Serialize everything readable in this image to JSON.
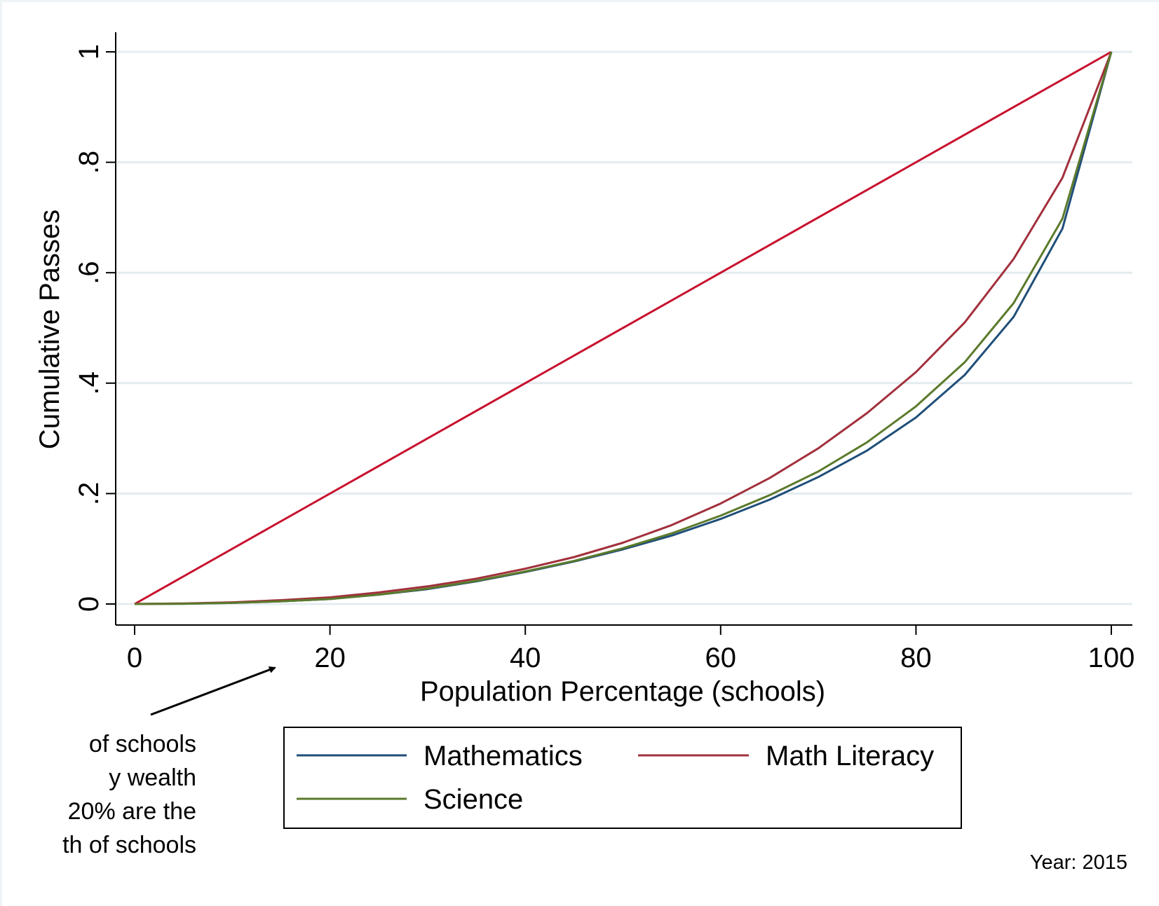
{
  "chart_data": {
    "type": "line",
    "xlabel": "Population Percentage (schools)",
    "ylabel": "Cumulative Passes",
    "xlim": [
      0,
      100
    ],
    "ylim": [
      0,
      1
    ],
    "x_ticks": [
      0,
      20,
      40,
      60,
      80,
      100
    ],
    "x_tick_labels": [
      "0",
      "20",
      "40",
      "60",
      "80",
      "100"
    ],
    "y_ticks": [
      0,
      0.2,
      0.4,
      0.6,
      0.8,
      1
    ],
    "y_tick_labels": [
      "0",
      ".2",
      ".4",
      ".6",
      ".8",
      "1"
    ],
    "grid": true,
    "legend_placement": "bottom",
    "equality_line": {
      "x": [
        0,
        100
      ],
      "y": [
        0,
        1
      ],
      "color": "#c8102e"
    },
    "x": [
      0,
      5,
      10,
      15,
      20,
      25,
      30,
      35,
      40,
      45,
      50,
      55,
      60,
      65,
      70,
      75,
      80,
      85,
      90,
      95,
      100
    ],
    "series": [
      {
        "name": "Mathematics",
        "color": "#1f4e79",
        "values": [
          0,
          0.0005,
          0.002,
          0.005,
          0.009,
          0.017,
          0.027,
          0.041,
          0.058,
          0.077,
          0.099,
          0.124,
          0.154,
          0.189,
          0.23,
          0.278,
          0.338,
          0.415,
          0.52,
          0.68,
          1.0
        ]
      },
      {
        "name": "Math Literacy",
        "color": "#a2303c",
        "values": [
          0,
          0.001,
          0.003,
          0.007,
          0.012,
          0.021,
          0.032,
          0.046,
          0.064,
          0.085,
          0.111,
          0.143,
          0.182,
          0.228,
          0.282,
          0.346,
          0.42,
          0.51,
          0.625,
          0.772,
          1.0
        ]
      },
      {
        "name": "Science",
        "color": "#5b7a2b",
        "values": [
          0,
          0.0005,
          0.002,
          0.005,
          0.009,
          0.017,
          0.028,
          0.042,
          0.059,
          0.078,
          0.101,
          0.128,
          0.16,
          0.197,
          0.24,
          0.293,
          0.358,
          0.438,
          0.545,
          0.698,
          1.0
        ]
      }
    ],
    "annotations": {
      "year": "Year: 2015",
      "note_lines": [
        "of schools",
        "y wealth",
        "20% are the",
        "th of schools"
      ]
    }
  }
}
